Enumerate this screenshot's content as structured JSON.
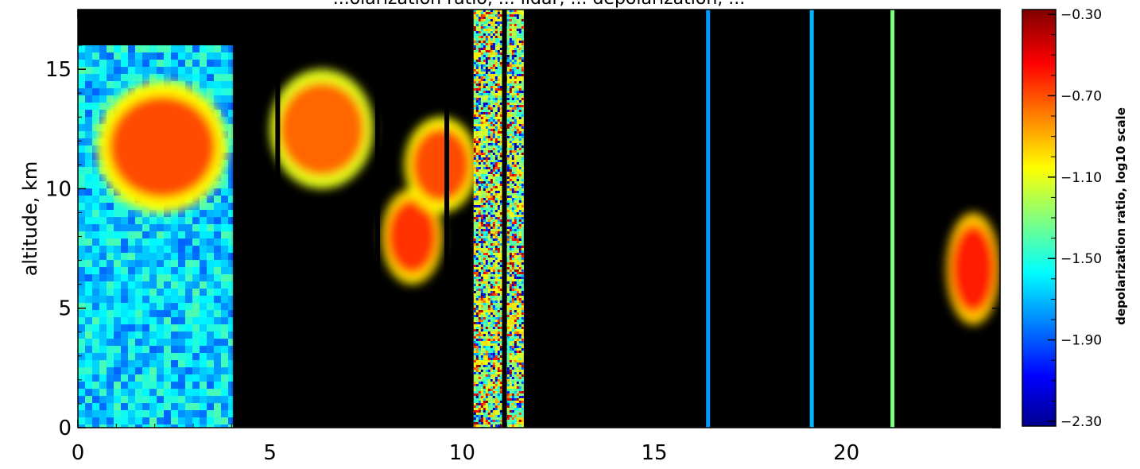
{
  "chart_data": {
    "type": "heatmap",
    "title": "...olarization ratio, ... lidar, ... depolarization, ...",
    "xlabel": "",
    "ylabel": "altitude, km",
    "x_ticks": [
      "0",
      "5",
      "10",
      "15",
      "20"
    ],
    "y_ticks": [
      "0",
      "5",
      "10",
      "15"
    ],
    "xlim": [
      0,
      24
    ],
    "ylim": [
      0,
      17.5
    ],
    "colorbar": {
      "label": "depolarization ratio, log10 scale",
      "ticks": [
        "-0.30",
        "-0.70",
        "-1.10",
        "-1.50",
        "-1.90",
        "-2.30"
      ],
      "range": [
        -2.3,
        -0.3
      ],
      "colormap": "jet"
    },
    "cloud_regions": [
      {
        "x": [
          0.0,
          4.0
        ],
        "y": [
          0,
          16
        ],
        "mean_log10": -1.6
      },
      {
        "x": [
          0.5,
          3.9
        ],
        "y": [
          9,
          14.5
        ],
        "mean_log10": -0.7
      },
      {
        "x": [
          5.0,
          7.7
        ],
        "y": [
          10,
          15
        ],
        "mean_log10": -0.75
      },
      {
        "x": [
          7.9,
          9.5
        ],
        "y": [
          6,
          10
        ],
        "mean_log10": -0.65
      },
      {
        "x": [
          8.5,
          10.4
        ],
        "y": [
          9,
          13
        ],
        "mean_log10": -0.7
      },
      {
        "x": [
          10.3,
          11.6
        ],
        "y": [
          0,
          17.5
        ],
        "mean_log10": -1.2
      },
      {
        "x": [
          22.6,
          24.0
        ],
        "y": [
          4.3,
          9
        ],
        "mean_log10": -0.6
      }
    ],
    "thin_columns": [
      {
        "x": 16.4,
        "mean_log10": -1.75
      },
      {
        "x": 19.1,
        "mean_log10": -1.7
      },
      {
        "x": 21.2,
        "mean_log10": -1.3
      }
    ],
    "background_color": "#000000"
  }
}
